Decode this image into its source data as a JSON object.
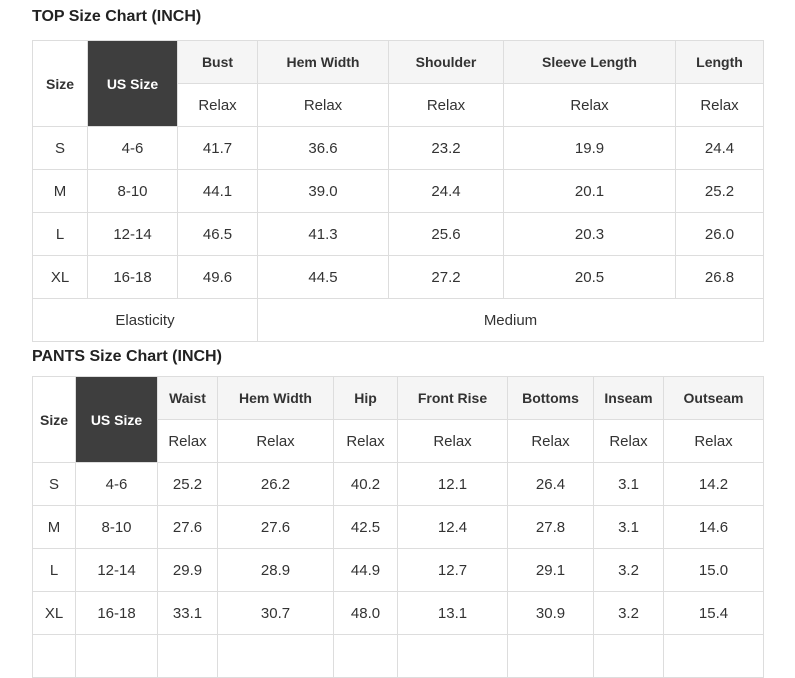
{
  "colors": {
    "title_text": "#222222",
    "body_text": "#333333",
    "border": "#dddddd",
    "measure_header_bg": "#f5f5f5",
    "us_size_bg": "#3e3e3e",
    "us_size_text": "#ffffff",
    "cell_bg": "#ffffff"
  },
  "chart_data": [
    {
      "type": "table",
      "title": "TOP Size Chart (INCH)",
      "size_header": "Size",
      "us_size_header": "US Size",
      "measure_headers": [
        "Bust",
        "Hem Width",
        "Shoulder",
        "Sleeve Length",
        "Length"
      ],
      "fit_row": [
        "Relax",
        "Relax",
        "Relax",
        "Relax",
        "Relax"
      ],
      "rows": [
        {
          "size": "S",
          "us_size": "4-6",
          "values": [
            "41.7",
            "36.6",
            "23.2",
            "19.9",
            "24.4"
          ]
        },
        {
          "size": "M",
          "us_size": "8-10",
          "values": [
            "44.1",
            "39.0",
            "24.4",
            "20.1",
            "25.2"
          ]
        },
        {
          "size": "L",
          "us_size": "12-14",
          "values": [
            "46.5",
            "41.3",
            "25.6",
            "20.3",
            "26.0"
          ]
        },
        {
          "size": "XL",
          "us_size": "16-18",
          "values": [
            "49.6",
            "44.5",
            "27.2",
            "20.5",
            "26.8"
          ]
        }
      ],
      "footer": {
        "label": "Elasticity",
        "value": "Medium"
      }
    },
    {
      "type": "table",
      "title": "PANTS Size Chart (INCH)",
      "size_header": "Size",
      "us_size_header": "US Size",
      "measure_headers": [
        "Waist",
        "Hem Width",
        "Hip",
        "Front Rise",
        "Bottoms",
        "Inseam",
        "Outseam"
      ],
      "fit_row": [
        "Relax",
        "Relax",
        "Relax",
        "Relax",
        "Relax",
        "Relax",
        "Relax"
      ],
      "rows": [
        {
          "size": "S",
          "us_size": "4-6",
          "values": [
            "25.2",
            "26.2",
            "40.2",
            "12.1",
            "26.4",
            "3.1",
            "14.2"
          ]
        },
        {
          "size": "M",
          "us_size": "8-10",
          "values": [
            "27.6",
            "27.6",
            "42.5",
            "12.4",
            "27.8",
            "3.1",
            "14.6"
          ]
        },
        {
          "size": "L",
          "us_size": "12-14",
          "values": [
            "29.9",
            "28.9",
            "44.9",
            "12.7",
            "29.1",
            "3.2",
            "15.0"
          ]
        },
        {
          "size": "XL",
          "us_size": "16-18",
          "values": [
            "33.1",
            "30.7",
            "48.0",
            "13.1",
            "30.9",
            "3.2",
            "15.4"
          ]
        }
      ]
    }
  ]
}
